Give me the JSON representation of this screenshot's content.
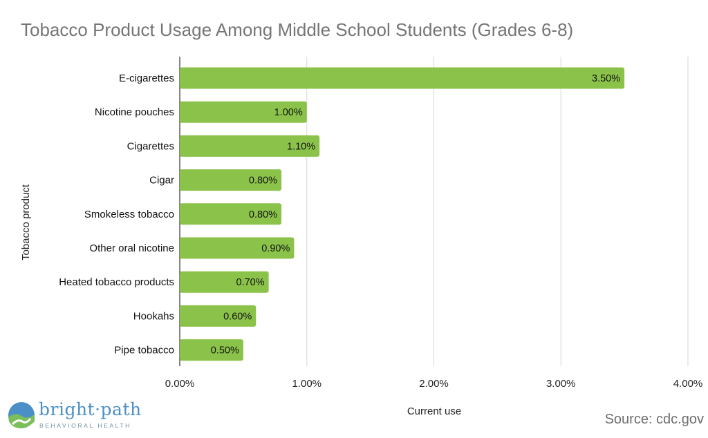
{
  "chart_data": {
    "type": "bar",
    "orientation": "horizontal",
    "title": "Tobacco Product Usage Among Middle School Students (Grades 6-8)",
    "xlabel": "Current use",
    "ylabel": "Tobacco product",
    "categories": [
      "E-cigarettes",
      "Nicotine pouches",
      "Cigarettes",
      "Cigar",
      "Smokeless tobacco",
      "Other oral nicotine",
      "Heated tobacco products",
      "Hookahs",
      "Pipe tobacco"
    ],
    "values": [
      3.5,
      1.0,
      1.1,
      0.8,
      0.8,
      0.9,
      0.7,
      0.6,
      0.5
    ],
    "value_labels": [
      "3.50%",
      "1.00%",
      "1.10%",
      "0.80%",
      "0.80%",
      "0.90%",
      "0.70%",
      "0.60%",
      "0.50%"
    ],
    "xlim": [
      0,
      4
    ],
    "xticks": [
      0,
      1,
      2,
      3,
      4
    ],
    "xtick_labels": [
      "0.00%",
      "1.00%",
      "2.00%",
      "3.00%",
      "4.00%"
    ],
    "grid": true,
    "bar_color": "#8bc34a"
  },
  "brand": {
    "name": "bright·path",
    "subtitle": "BEHAVIORAL HEALTH"
  },
  "source": "Source: cdc.gov",
  "colors": {
    "bar": "#8bc34a",
    "grid": "#d6d6d6",
    "axis": "#333333",
    "brand_blue": "#4a8fc6",
    "brand_green": "#7bbf5a"
  }
}
